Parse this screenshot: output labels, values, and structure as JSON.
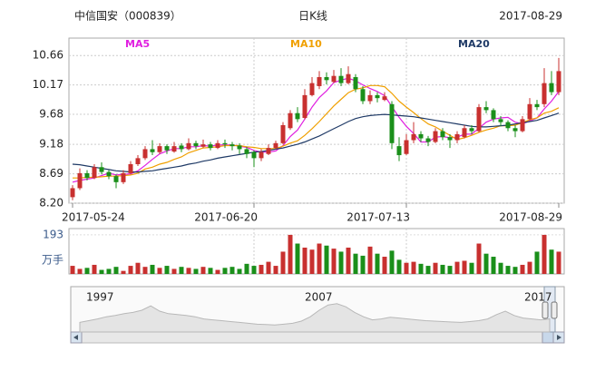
{
  "chart_data": {
    "type": "candlestick",
    "title": "中信国安（000839）",
    "subtitle": "日K线",
    "date": "2017-08-29",
    "up_color": "#c8302f",
    "down_color": "#1a8f1a",
    "grid": true,
    "ylim": [
      8.2,
      10.95
    ],
    "yticks": [
      {
        "value": 8.2,
        "label": "8.20"
      },
      8.69,
      9.18,
      9.68,
      10.17,
      10.66
    ],
    "categories": [
      "2017-05-24",
      null,
      null,
      null,
      null,
      null,
      null,
      null,
      null,
      null,
      null,
      null,
      null,
      null,
      null,
      null,
      null,
      null,
      null,
      null,
      null,
      null,
      null,
      null,
      null,
      "2017-06-20",
      null,
      null,
      null,
      null,
      null,
      null,
      null,
      null,
      null,
      null,
      null,
      null,
      null,
      null,
      null,
      null,
      null,
      null,
      null,
      null,
      "2017-07-13",
      null,
      null,
      null,
      null,
      null,
      null,
      null,
      null,
      null,
      null,
      null,
      null,
      null,
      null,
      null,
      null,
      null,
      null,
      null,
      null,
      "2017-08-29"
    ],
    "ohlc": [
      [
        8.3,
        8.5,
        8.25,
        8.45
      ],
      [
        8.45,
        8.78,
        8.42,
        8.7
      ],
      [
        8.7,
        8.75,
        8.58,
        8.62
      ],
      [
        8.62,
        8.85,
        8.6,
        8.8
      ],
      [
        8.8,
        8.88,
        8.68,
        8.72
      ],
      [
        8.72,
        8.75,
        8.6,
        8.65
      ],
      [
        8.65,
        8.68,
        8.45,
        8.55
      ],
      [
        8.55,
        8.75,
        8.52,
        8.7
      ],
      [
        8.7,
        8.9,
        8.68,
        8.85
      ],
      [
        8.85,
        9.0,
        8.82,
        8.95
      ],
      [
        8.95,
        9.15,
        8.92,
        9.1
      ],
      [
        9.1,
        9.25,
        9.0,
        9.05
      ],
      [
        9.05,
        9.2,
        9.02,
        9.15
      ],
      [
        9.15,
        9.18,
        9.02,
        9.08
      ],
      [
        9.06,
        9.22,
        9.04,
        9.15
      ],
      [
        9.16,
        9.2,
        9.05,
        9.1
      ],
      [
        9.1,
        9.28,
        9.08,
        9.2
      ],
      [
        9.2,
        9.24,
        9.1,
        9.15
      ],
      [
        9.14,
        9.26,
        9.12,
        9.18
      ],
      [
        9.18,
        9.22,
        9.08,
        9.12
      ],
      [
        9.12,
        9.25,
        9.1,
        9.2
      ],
      [
        9.2,
        9.26,
        9.12,
        9.18
      ],
      [
        9.18,
        9.22,
        9.08,
        9.15
      ],
      [
        9.16,
        9.2,
        9.02,
        9.1
      ],
      [
        9.1,
        9.14,
        8.95,
        9.02
      ],
      [
        9.05,
        9.08,
        8.8,
        8.95
      ],
      [
        8.95,
        9.1,
        8.9,
        9.05
      ],
      [
        9.02,
        9.18,
        9.0,
        9.12
      ],
      [
        9.12,
        9.24,
        9.1,
        9.2
      ],
      [
        9.2,
        9.55,
        9.18,
        9.5
      ],
      [
        9.45,
        9.75,
        9.42,
        9.7
      ],
      [
        9.7,
        9.8,
        9.55,
        9.6
      ],
      [
        9.62,
        10.1,
        9.6,
        10.0
      ],
      [
        10.0,
        10.3,
        9.98,
        10.2
      ],
      [
        10.15,
        10.4,
        10.1,
        10.3
      ],
      [
        10.3,
        10.38,
        10.18,
        10.25
      ],
      [
        10.22,
        10.42,
        10.2,
        10.32
      ],
      [
        10.32,
        10.45,
        10.15,
        10.2
      ],
      [
        10.2,
        10.48,
        10.18,
        10.35
      ],
      [
        10.3,
        10.35,
        10.05,
        10.1
      ],
      [
        10.1,
        10.15,
        9.85,
        9.9
      ],
      [
        9.9,
        10.08,
        9.85,
        10.0
      ],
      [
        10.0,
        10.05,
        9.88,
        9.95
      ],
      [
        9.92,
        10.05,
        9.9,
        9.98
      ],
      [
        9.85,
        9.9,
        9.1,
        9.2
      ],
      [
        9.15,
        9.3,
        8.9,
        9.0
      ],
      [
        9.02,
        9.35,
        9.0,
        9.25
      ],
      [
        9.25,
        9.55,
        9.2,
        9.35
      ],
      [
        9.35,
        9.4,
        9.22,
        9.28
      ],
      [
        9.28,
        9.32,
        9.15,
        9.22
      ],
      [
        9.22,
        9.45,
        9.2,
        9.4
      ],
      [
        9.4,
        9.45,
        9.25,
        9.3
      ],
      [
        9.3,
        9.35,
        9.12,
        9.25
      ],
      [
        9.25,
        9.4,
        9.2,
        9.35
      ],
      [
        9.3,
        9.5,
        9.28,
        9.45
      ],
      [
        9.45,
        9.5,
        9.35,
        9.4
      ],
      [
        9.4,
        9.85,
        9.38,
        9.8
      ],
      [
        9.8,
        9.9,
        9.7,
        9.75
      ],
      [
        9.75,
        9.78,
        9.55,
        9.6
      ],
      [
        9.6,
        9.65,
        9.48,
        9.55
      ],
      [
        9.55,
        9.58,
        9.4,
        9.45
      ],
      [
        9.45,
        9.5,
        9.3,
        9.4
      ],
      [
        9.4,
        9.65,
        9.38,
        9.6
      ],
      [
        9.6,
        9.95,
        9.58,
        9.85
      ],
      [
        9.85,
        9.92,
        9.75,
        9.8
      ],
      [
        9.85,
        10.45,
        9.8,
        10.2
      ],
      [
        10.2,
        10.4,
        10.0,
        10.05
      ],
      [
        10.05,
        10.62,
        10.0,
        10.4
      ]
    ],
    "series": [
      {
        "name": "MA5",
        "color": "#e020e0",
        "values": [
          8.55,
          8.58,
          8.6,
          8.62,
          8.66,
          8.7,
          8.67,
          8.68,
          8.69,
          8.74,
          8.83,
          8.93,
          9.02,
          9.07,
          9.11,
          9.11,
          9.14,
          9.14,
          9.16,
          9.15,
          9.17,
          9.17,
          9.17,
          9.15,
          9.13,
          9.08,
          9.05,
          9.05,
          9.07,
          9.16,
          9.31,
          9.42,
          9.6,
          9.8,
          9.96,
          10.07,
          10.21,
          10.25,
          10.28,
          10.24,
          10.17,
          10.11,
          10.06,
          9.99,
          9.81,
          9.63,
          9.48,
          9.36,
          9.22,
          9.22,
          9.3,
          9.31,
          9.29,
          9.3,
          9.35,
          9.35,
          9.45,
          9.55,
          9.6,
          9.62,
          9.63,
          9.55,
          9.52,
          9.57,
          9.62,
          9.77,
          9.9,
          10.06
        ]
      },
      {
        "name": "MA10",
        "color": "#f0a000",
        "values": [
          8.62,
          8.62,
          8.63,
          8.63,
          8.64,
          8.65,
          8.65,
          8.66,
          8.67,
          8.7,
          8.77,
          8.8,
          8.85,
          8.88,
          8.93,
          8.97,
          9.04,
          9.08,
          9.12,
          9.13,
          9.14,
          9.16,
          9.16,
          9.16,
          9.14,
          9.13,
          9.11,
          9.11,
          9.11,
          9.15,
          9.2,
          9.24,
          9.33,
          9.44,
          9.56,
          9.69,
          9.82,
          9.93,
          10.04,
          10.1,
          10.12,
          10.16,
          10.16,
          10.14,
          10.03,
          9.9,
          9.8,
          9.71,
          9.61,
          9.52,
          9.47,
          9.4,
          9.33,
          9.26,
          9.29,
          9.33,
          9.38,
          9.42,
          9.45,
          9.49,
          9.49,
          9.5,
          9.54,
          9.59,
          9.62,
          9.7,
          9.73,
          9.79
        ]
      },
      {
        "name": "MA20",
        "color": "#1f3a66",
        "values": [
          8.85,
          8.84,
          8.82,
          8.8,
          8.78,
          8.76,
          8.74,
          8.73,
          8.72,
          8.72,
          8.73,
          8.74,
          8.76,
          8.78,
          8.8,
          8.82,
          8.85,
          8.87,
          8.9,
          8.92,
          8.95,
          8.97,
          8.99,
          9.01,
          9.03,
          9.05,
          9.06,
          9.08,
          9.1,
          9.12,
          9.15,
          9.18,
          9.22,
          9.27,
          9.32,
          9.38,
          9.44,
          9.5,
          9.56,
          9.61,
          9.64,
          9.66,
          9.67,
          9.68,
          9.67,
          9.66,
          9.65,
          9.64,
          9.62,
          9.6,
          9.58,
          9.56,
          9.54,
          9.52,
          9.5,
          9.48,
          9.47,
          9.47,
          9.48,
          9.49,
          9.5,
          9.52,
          9.54,
          9.56,
          9.58,
          9.62,
          9.66,
          9.7
        ]
      }
    ],
    "volume": {
      "unit": "万手",
      "ylim": [
        0,
        224
      ],
      "yticks": [
        193
      ],
      "values": [
        40,
        25,
        30,
        45,
        20,
        25,
        35,
        15,
        40,
        55,
        35,
        45,
        30,
        40,
        25,
        35,
        30,
        25,
        35,
        30,
        20,
        30,
        35,
        25,
        50,
        40,
        45,
        60,
        40,
        110,
        193,
        150,
        130,
        120,
        150,
        140,
        125,
        110,
        130,
        100,
        90,
        135,
        100,
        85,
        115,
        70,
        55,
        60,
        50,
        40,
        55,
        45,
        40,
        60,
        65,
        55,
        150,
        100,
        85,
        55,
        40,
        35,
        45,
        60,
        110,
        193,
        120,
        110
      ]
    },
    "navigator": {
      "labels": [
        "1997",
        "2007",
        "2017"
      ],
      "ylim": [
        0,
        100
      ],
      "values": [
        22,
        26,
        30,
        35,
        38,
        42,
        45,
        50,
        60,
        48,
        42,
        40,
        38,
        35,
        30,
        28,
        26,
        24,
        22,
        20,
        18,
        17,
        16,
        18,
        20,
        25,
        35,
        50,
        62,
        65,
        58,
        45,
        35,
        28,
        30,
        34,
        32,
        30,
        28,
        26,
        25,
        24,
        23,
        22,
        24,
        26,
        30,
        40,
        48,
        38,
        32,
        30,
        28,
        30
      ]
    }
  }
}
